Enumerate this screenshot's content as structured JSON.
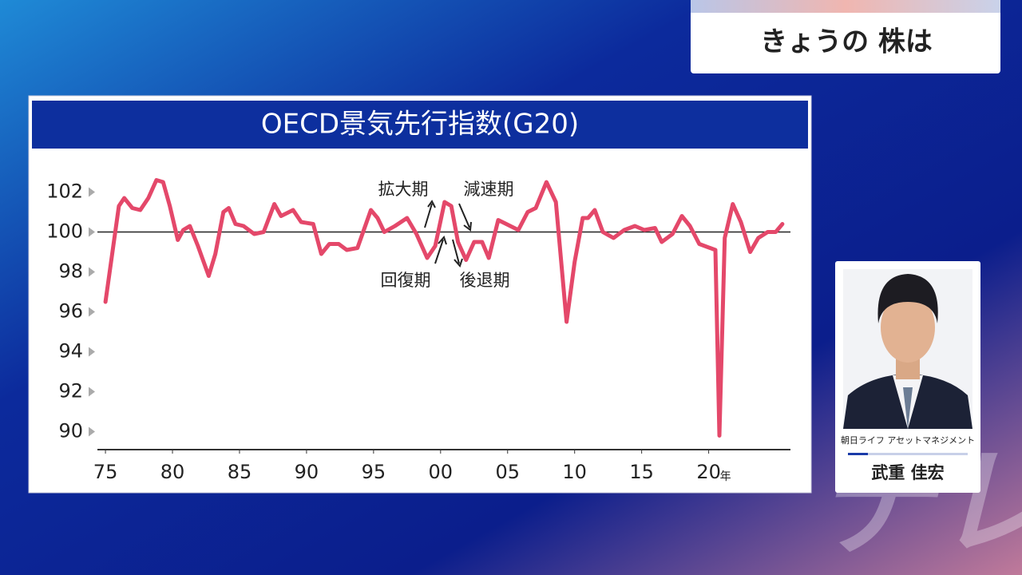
{
  "header": {
    "title": "きょうの 株は"
  },
  "chart_data": {
    "type": "line",
    "title": "OECD景気先行指数(G20)",
    "x": [
      1975.0,
      1975.5,
      1976.0,
      1976.4,
      1977.0,
      1977.6,
      1978.2,
      1978.8,
      1979.3,
      1979.8,
      1980.4,
      1980.8,
      1981.3,
      1981.9,
      1982.7,
      1983.2,
      1983.8,
      1984.2,
      1984.7,
      1985.3,
      1986.1,
      1986.8,
      1987.6,
      1988.1,
      1989.0,
      1989.6,
      1990.5,
      1991.1,
      1991.7,
      1992.4,
      1993.0,
      1993.8,
      1994.8,
      1995.3,
      1995.8,
      1996.6,
      1997.5,
      1998.2,
      1999.0,
      1999.6,
      2000.3,
      2000.8,
      2001.3,
      2001.9,
      2002.5,
      2003.1,
      2003.6,
      2004.3,
      2005.2,
      2005.8,
      2006.5,
      2007.1,
      2007.9,
      2008.6,
      2009.4,
      2010.0,
      2010.6,
      2011.0,
      2011.5,
      2012.1,
      2012.9,
      2013.7,
      2014.5,
      2015.2,
      2016.0,
      2016.5,
      2017.3,
      2018.0,
      2018.6,
      2019.3,
      2020.1,
      2020.5,
      2020.8,
      2021.2,
      2021.8,
      2022.4,
      2023.1,
      2023.7,
      2024.4,
      2025.0,
      2025.5
    ],
    "values": [
      96.5,
      98.9,
      101.3,
      101.7,
      101.2,
      101.1,
      101.7,
      102.6,
      102.5,
      101.3,
      99.6,
      100.1,
      100.3,
      99.3,
      97.8,
      98.9,
      101.0,
      101.2,
      100.4,
      100.3,
      99.9,
      100.0,
      101.4,
      100.8,
      101.1,
      100.5,
      100.4,
      98.9,
      99.4,
      99.4,
      99.1,
      99.2,
      101.1,
      100.7,
      100.0,
      100.3,
      100.7,
      99.9,
      98.7,
      99.3,
      101.5,
      101.3,
      99.5,
      98.6,
      99.5,
      99.5,
      98.7,
      100.6,
      100.3,
      100.1,
      101.0,
      101.2,
      102.5,
      101.5,
      95.5,
      98.5,
      100.7,
      100.7,
      101.1,
      100.0,
      99.7,
      100.1,
      100.3,
      100.1,
      100.2,
      99.5,
      99.9,
      100.8,
      100.3,
      99.4,
      99.2,
      99.1,
      89.8,
      99.7,
      101.4,
      100.5,
      99.0,
      99.7,
      100.0,
      100.0,
      100.4
    ],
    "color": "#e4486a",
    "xlim": [
      1974.4,
      2026.1
    ],
    "ylim": [
      89.1,
      104.1
    ],
    "yticks": [
      90,
      92,
      94,
      96,
      98,
      100,
      102
    ],
    "xticks": [
      {
        "value": 1975,
        "label": "75"
      },
      {
        "value": 1980,
        "label": "80"
      },
      {
        "value": 1985,
        "label": "85"
      },
      {
        "value": 1990,
        "label": "90"
      },
      {
        "value": 1995,
        "label": "95"
      },
      {
        "value": 2000,
        "label": "00"
      },
      {
        "value": 2005,
        "label": "05"
      },
      {
        "value": 2010,
        "label": "10"
      },
      {
        "value": 2015,
        "label": "15"
      },
      {
        "value": 2020,
        "label": "20"
      }
    ],
    "x_unit": "年",
    "hline": 100,
    "annotations": [
      "拡大期",
      "減速期",
      "回復期",
      "後退期"
    ]
  },
  "guest": {
    "company": "朝日ライフ アセットマネジメント",
    "name": "武重 佳宏"
  },
  "watermark": "テレ東"
}
